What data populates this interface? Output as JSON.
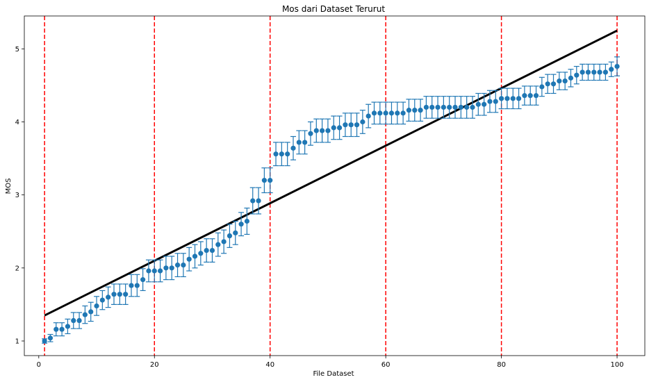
{
  "chart_data": {
    "type": "scatter",
    "title": "Mos dari Dataset Terurut",
    "xlabel": "File Dataset",
    "ylabel": "MOS",
    "xlim": [
      -2.5,
      104.8
    ],
    "ylim": [
      0.8,
      5.45
    ],
    "x_ticks": [
      0,
      20,
      40,
      60,
      80,
      100
    ],
    "y_ticks": [
      1,
      2,
      3,
      4,
      5
    ],
    "grid": false,
    "colors": {
      "points": "#1f77b4",
      "errorbars": "#1f77b4",
      "trend": "#000000",
      "vlines": "#ff0000"
    },
    "vertical_lines": [
      1,
      20,
      40,
      60,
      80,
      100
    ],
    "trend_line": {
      "x": [
        1,
        100
      ],
      "y": [
        1.35,
        5.25
      ]
    },
    "series": [
      {
        "x": [
          1,
          2,
          3,
          4,
          5,
          6,
          7,
          8,
          9,
          10,
          11,
          12,
          13,
          14,
          15,
          16,
          17,
          18,
          19,
          20,
          21,
          22,
          23,
          24,
          25,
          26,
          27,
          28,
          29,
          30,
          31,
          32,
          33,
          34,
          35,
          36,
          37,
          38,
          39,
          40,
          41,
          42,
          43,
          44,
          45,
          46,
          47,
          48,
          49,
          50,
          51,
          52,
          53,
          54,
          55,
          56,
          57,
          58,
          59,
          60,
          61,
          62,
          63,
          64,
          65,
          66,
          67,
          68,
          69,
          70,
          71,
          72,
          73,
          74,
          75,
          76,
          77,
          78,
          79,
          80,
          81,
          82,
          83,
          84,
          85,
          86,
          87,
          88,
          89,
          90,
          91,
          92,
          93,
          94,
          95,
          96,
          97,
          98,
          99,
          100
        ],
        "y": [
          1.0,
          1.04,
          1.16,
          1.16,
          1.2,
          1.28,
          1.28,
          1.36,
          1.4,
          1.48,
          1.56,
          1.6,
          1.64,
          1.64,
          1.64,
          1.76,
          1.76,
          1.84,
          1.96,
          1.96,
          1.96,
          2.0,
          2.0,
          2.04,
          2.04,
          2.12,
          2.16,
          2.2,
          2.24,
          2.24,
          2.32,
          2.36,
          2.44,
          2.48,
          2.6,
          2.64,
          2.92,
          2.92,
          3.2,
          3.2,
          3.56,
          3.56,
          3.56,
          3.64,
          3.72,
          3.72,
          3.84,
          3.88,
          3.88,
          3.88,
          3.92,
          3.92,
          3.96,
          3.96,
          3.96,
          4.0,
          4.08,
          4.12,
          4.12,
          4.12,
          4.12,
          4.12,
          4.12,
          4.16,
          4.16,
          4.16,
          4.2,
          4.2,
          4.2,
          4.2,
          4.2,
          4.2,
          4.2,
          4.2,
          4.2,
          4.24,
          4.24,
          4.28,
          4.28,
          4.32,
          4.32,
          4.32,
          4.32,
          4.36,
          4.36,
          4.36,
          4.48,
          4.52,
          4.52,
          4.56,
          4.56,
          4.6,
          4.64,
          4.68,
          4.68,
          4.68,
          4.68,
          4.68,
          4.72,
          4.76
        ],
        "err": [
          0.03,
          0.05,
          0.09,
          0.09,
          0.1,
          0.11,
          0.11,
          0.12,
          0.13,
          0.13,
          0.13,
          0.14,
          0.14,
          0.14,
          0.14,
          0.15,
          0.15,
          0.15,
          0.15,
          0.15,
          0.15,
          0.16,
          0.16,
          0.16,
          0.16,
          0.16,
          0.16,
          0.16,
          0.16,
          0.16,
          0.16,
          0.16,
          0.16,
          0.16,
          0.16,
          0.18,
          0.18,
          0.18,
          0.17,
          0.17,
          0.16,
          0.16,
          0.16,
          0.16,
          0.16,
          0.16,
          0.16,
          0.16,
          0.16,
          0.16,
          0.16,
          0.16,
          0.16,
          0.16,
          0.16,
          0.16,
          0.16,
          0.15,
          0.15,
          0.15,
          0.15,
          0.15,
          0.15,
          0.15,
          0.15,
          0.15,
          0.15,
          0.15,
          0.15,
          0.15,
          0.15,
          0.15,
          0.15,
          0.15,
          0.15,
          0.15,
          0.15,
          0.15,
          0.15,
          0.14,
          0.14,
          0.14,
          0.14,
          0.13,
          0.13,
          0.13,
          0.13,
          0.13,
          0.13,
          0.12,
          0.12,
          0.12,
          0.12,
          0.11,
          0.11,
          0.11,
          0.11,
          0.11,
          0.1,
          0.13
        ]
      }
    ]
  }
}
